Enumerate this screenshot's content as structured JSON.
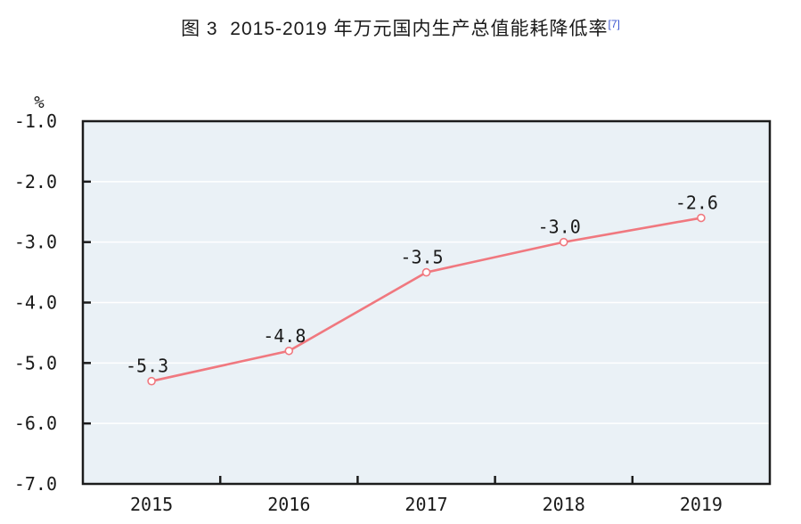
{
  "title": {
    "text": "图 3  2015-2019 年万元国内生产总值能耗降低率",
    "superscript": "[7]"
  },
  "chart_data": {
    "type": "line",
    "title": "图 3 2015-2019 年万元国内生产总值能耗降低率[7]",
    "categories": [
      "2015",
      "2016",
      "2017",
      "2018",
      "2019"
    ],
    "values": [
      -5.3,
      -4.8,
      -3.5,
      -3.0,
      -2.6
    ],
    "point_labels": [
      "-5.3",
      "-4.8",
      "-3.5",
      "-3.0",
      "-2.6"
    ],
    "xlabel": "",
    "ylabel": "%",
    "ylim": [
      -7.0,
      -1.0
    ],
    "yticks": [
      -1.0,
      -2.0,
      -3.0,
      -4.0,
      -5.0,
      -6.0,
      -7.0
    ],
    "ytick_labels": [
      "-1.0",
      "-2.0",
      "-3.0",
      "-4.0",
      "-5.0",
      "-6.0",
      "-7.0"
    ],
    "grid": true,
    "legend": false,
    "marker": "open-circle",
    "colors": {
      "line": "#f0787f",
      "marker_fill": "#ffffff",
      "plot_bg": "#eaf1f6",
      "grid": "#ffffff",
      "axis": "#1c1c1c",
      "text": "#1a1a1a",
      "superscript": "#3b55d0"
    }
  }
}
